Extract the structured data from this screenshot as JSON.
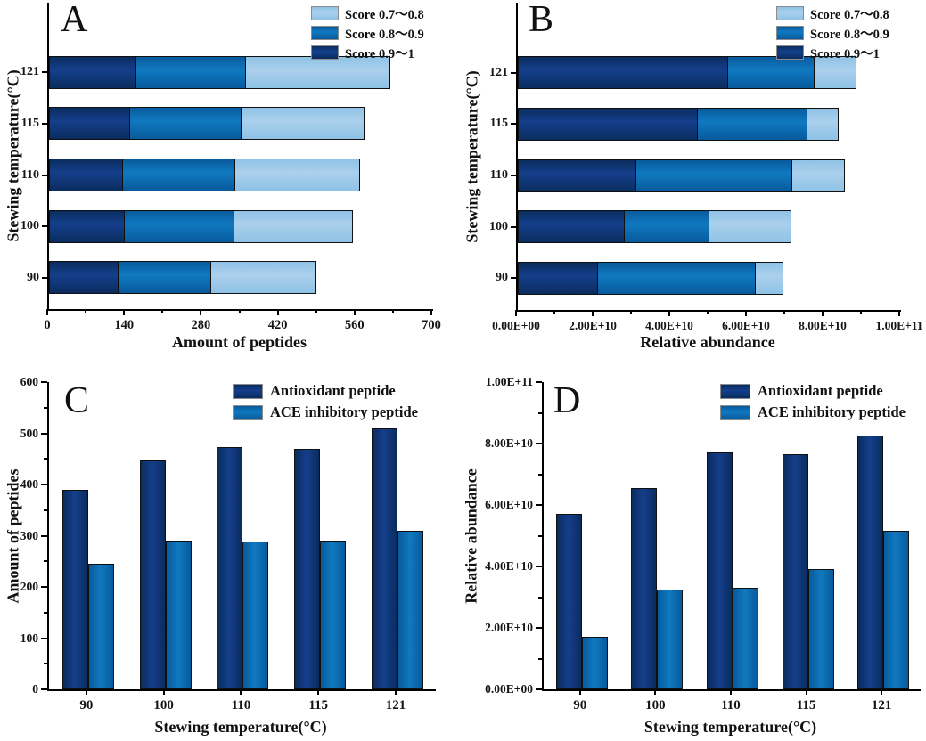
{
  "figure": {
    "background": "#ffffff",
    "panel_letters": [
      "A",
      "B",
      "C",
      "D"
    ]
  },
  "colors": {
    "navy": {
      "edge": "#0a2c5e",
      "mid": "#153f8c"
    },
    "blue": {
      "edge": "#085a9c",
      "mid": "#1079c0"
    },
    "lightblue": {
      "edge": "#8fc2e6",
      "mid": "#abd0ec"
    },
    "bar_border": "#101010",
    "axis": "#000000",
    "legend_swatch_border": "#8c8c8c",
    "text": "#111111"
  },
  "chart_data": [
    {
      "panel": "A",
      "panel_label": "A",
      "type": "bar",
      "orientation": "horizontal",
      "stacked": true,
      "categories": [
        "90",
        "100",
        "110",
        "115",
        "121"
      ],
      "series": [
        {
          "name": "Score 0.9～1",
          "color": "navy",
          "values": [
            128,
            139,
            136,
            149,
            160
          ]
        },
        {
          "name": "Score 0.8～0.9",
          "color": "blue",
          "values": [
            171,
            202,
            207,
            205,
            202
          ]
        },
        {
          "name": "Score 0.7～0.8",
          "color": "lightblue",
          "values": [
            193,
            217,
            229,
            226,
            265
          ]
        }
      ],
      "totals": [
        492,
        558,
        572,
        580,
        627
      ],
      "xlabel": "Amount of peptides",
      "ylabel": "Stewing temperature(°C)",
      "xlim": [
        0,
        700
      ],
      "xticks": [
        "0",
        "140",
        "280",
        "420",
        "560",
        "700"
      ],
      "legend_order_top_to_bottom": [
        "Score 0.7～0.8",
        "Score 0.8～0.9",
        "Score 0.9～1"
      ],
      "grid": false,
      "legend_position": "top-right-inside"
    },
    {
      "panel": "B",
      "panel_label": "B",
      "type": "bar",
      "orientation": "horizontal",
      "stacked": true,
      "categories": [
        "90",
        "100",
        "110",
        "115",
        "121"
      ],
      "series": [
        {
          "name": "Score 0.9～1",
          "color": "navy",
          "values": [
            21000000000.0,
            28000000000.0,
            31000000000.0,
            47000000000.0,
            55000000000.0
          ]
        },
        {
          "name": "Score 0.8～0.9",
          "color": "blue",
          "values": [
            41500000000.0,
            22500000000.0,
            41000000000.0,
            29000000000.0,
            23000000000.0
          ]
        },
        {
          "name": "Score 0.7～0.8",
          "color": "lightblue",
          "values": [
            7500000000.0,
            21500000000.0,
            14000000000.0,
            8500000000.0,
            11000000000.0
          ]
        }
      ],
      "totals": [
        70000000000.0,
        72000000000.0,
        86000000000.0,
        84500000000.0,
        89000000000.0
      ],
      "xlabel": "Relative abundance",
      "ylabel": "Stewing temperature(°C)",
      "xlim": [
        0,
        100000000000.0
      ],
      "xticks": [
        "0.00E+00",
        "2.00E+10",
        "4.00E+10",
        "6.00E+10",
        "8.00E+10",
        "1.00E+11"
      ],
      "legend_order_top_to_bottom": [
        "Score 0.7～0.8",
        "Score 0.8～0.9",
        "Score 0.9～1"
      ],
      "grid": false,
      "legend_position": "top-right-inside"
    },
    {
      "panel": "C",
      "panel_label": "C",
      "type": "bar",
      "orientation": "vertical",
      "stacked": false,
      "categories": [
        "90",
        "100",
        "110",
        "115",
        "121"
      ],
      "series": [
        {
          "name": "Antioxidant peptide",
          "color": "navy",
          "values": [
            390,
            447,
            473,
            470,
            509
          ]
        },
        {
          "name": "ACE inhibitory peptide",
          "color": "blue",
          "values": [
            245,
            290,
            288,
            290,
            309
          ]
        }
      ],
      "xlabel": "Stewing temperature(°C)",
      "ylabel": "Amount of peptides",
      "ylim": [
        0,
        600
      ],
      "yticks": [
        "0",
        "100",
        "200",
        "300",
        "400",
        "500",
        "600"
      ],
      "grid": false,
      "legend_position": "top-right-inside"
    },
    {
      "panel": "D",
      "panel_label": "D",
      "type": "bar",
      "orientation": "vertical",
      "stacked": false,
      "categories": [
        "90",
        "100",
        "110",
        "115",
        "121"
      ],
      "series": [
        {
          "name": "Antioxidant peptide",
          "color": "navy",
          "values": [
            57000000000.0,
            65500000000.0,
            77000000000.0,
            76500000000.0,
            82500000000.0
          ]
        },
        {
          "name": "ACE inhibitory peptide",
          "color": "blue",
          "values": [
            17000000000.0,
            32500000000.0,
            33000000000.0,
            39000000000.0,
            51500000000.0
          ]
        }
      ],
      "xlabel": "Stewing temperature(°C)",
      "ylabel": "Relative abundance",
      "ylim": [
        0,
        100000000000.0
      ],
      "yticks": [
        "0.00E+00",
        "2.00E+10",
        "4.00E+10",
        "6.00E+10",
        "8.00E+10",
        "1.00E+11"
      ],
      "grid": false,
      "legend_position": "top-right-inside"
    }
  ]
}
